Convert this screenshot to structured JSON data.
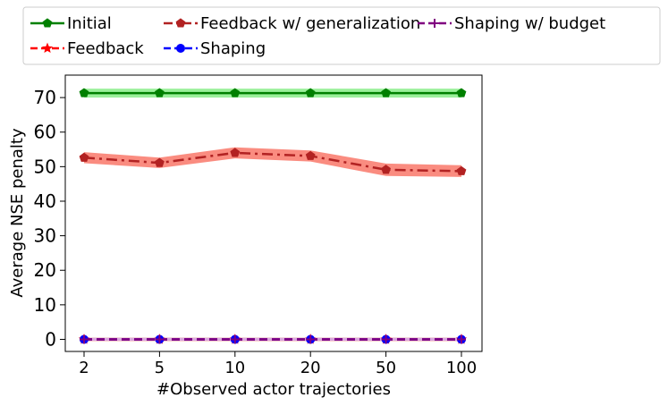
{
  "chart_data": {
    "type": "line",
    "xlabel": "#Observed actor trajectories",
    "ylabel": "Average NSE penalty",
    "categories": [
      "2",
      "5",
      "10",
      "20",
      "50",
      "100"
    ],
    "ylim": [
      -3.5,
      76.5
    ],
    "yticks": [
      0,
      10,
      20,
      30,
      40,
      50,
      60,
      70
    ],
    "grid": false,
    "legend_position": "top",
    "series": [
      {
        "name": "Initial",
        "color": "#008000",
        "band_color": "#90ee90",
        "line_style": "solid",
        "marker": "pentagon",
        "values": [
          71.3,
          71.3,
          71.3,
          71.3,
          71.3,
          71.3
        ],
        "band_low": [
          70.0,
          70.0,
          70.0,
          70.0,
          70.0,
          70.0
        ],
        "band_high": [
          72.6,
          72.6,
          72.6,
          72.6,
          72.6,
          72.6
        ]
      },
      {
        "name": "Feedback",
        "color": "#ff0000",
        "band_color": "#fa8072",
        "line_style": "dashed",
        "marker": "star",
        "values": [
          0,
          0,
          0,
          0,
          0,
          0
        ],
        "band_low": [
          -0.5,
          -0.5,
          -0.5,
          -0.5,
          -0.5,
          -0.5
        ],
        "band_high": [
          0.5,
          0.5,
          0.5,
          0.5,
          0.5,
          0.5
        ]
      },
      {
        "name": "Feedback w/ generalization",
        "color": "#b22222",
        "band_color": "#fa8072",
        "line_style": "dashdot",
        "marker": "pentagon",
        "values": [
          52.6,
          51.1,
          54.0,
          53.1,
          49.1,
          48.7
        ],
        "band_low": [
          51.0,
          49.6,
          52.4,
          51.5,
          47.3,
          47.0
        ],
        "band_high": [
          54.2,
          52.6,
          55.6,
          54.7,
          50.9,
          50.4
        ]
      },
      {
        "name": "Shaping",
        "color": "#0000ff",
        "band_color": "#add8e6",
        "line_style": "dashed",
        "marker": "circle",
        "values": [
          0,
          0,
          0,
          0,
          0,
          0
        ],
        "band_low": [
          -0.4,
          -0.4,
          -0.4,
          -0.4,
          -0.4,
          -0.4
        ],
        "band_high": [
          0.4,
          0.4,
          0.4,
          0.4,
          0.4,
          0.4
        ]
      },
      {
        "name": "Shaping w/ budget",
        "color": "#800080",
        "band_color": "#dda0dd",
        "line_style": "dashed",
        "marker": "plus",
        "values": [
          0,
          0,
          0,
          0,
          0,
          0
        ],
        "band_low": [
          -0.4,
          -0.4,
          -0.4,
          -0.4,
          -0.4,
          -0.4
        ],
        "band_high": [
          0.4,
          0.4,
          0.4,
          0.4,
          0.4,
          0.4
        ]
      }
    ]
  }
}
